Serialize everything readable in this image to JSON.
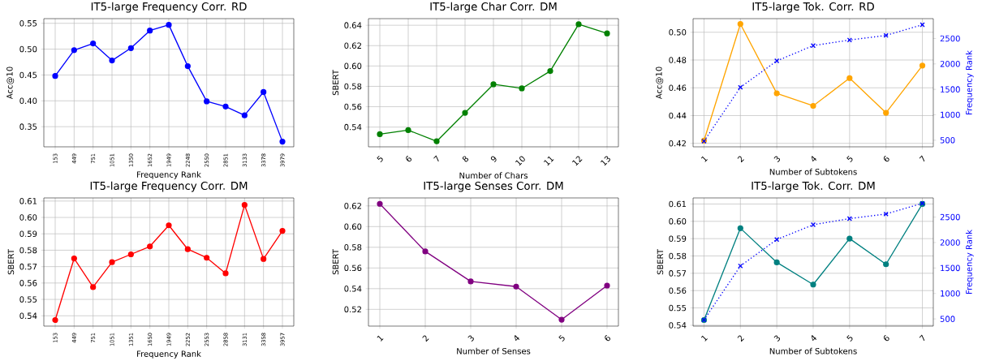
{
  "chart_data": [
    {
      "type": "line",
      "title": "IT5-large Frequency Corr. RD",
      "xlabel": "Frequency Rank",
      "ylabel": "Acc@10",
      "categories": [
        "153",
        "449",
        "751",
        "1051",
        "1350",
        "1652",
        "1949",
        "2248",
        "2550",
        "2851",
        "3133",
        "3378",
        "3979"
      ],
      "series": [
        {
          "color": "#0000ff",
          "marker": "circle",
          "line_style": "solid",
          "values": [
            0.448,
            0.498,
            0.511,
            0.478,
            0.502,
            0.536,
            0.547,
            0.467,
            0.399,
            0.389,
            0.372,
            0.417,
            0.321
          ]
        }
      ],
      "ylim": [
        0.311,
        0.559
      ],
      "yticks": [
        0.35,
        {
          "value": 0.4,
          "label": "0.40"
        },
        0.45,
        {
          "value": 0.5,
          "label": "0.50"
        },
        0.55
      ],
      "grid": true
    },
    {
      "type": "line",
      "title": "IT5-large Char Corr. DM",
      "xlabel": "Number of Chars",
      "ylabel": "SBERT",
      "categories": [
        "5",
        "6",
        "7",
        "8",
        "9",
        "10",
        "11",
        "12",
        "13"
      ],
      "series": [
        {
          "color": "#008000",
          "marker": "circle",
          "line_style": "solid",
          "values": [
            0.533,
            0.537,
            0.526,
            0.554,
            0.582,
            0.578,
            0.595,
            0.641,
            0.632
          ]
        }
      ],
      "ylim": [
        0.5206,
        0.6465
      ],
      "yticks": [
        0.54,
        0.56,
        0.58,
        {
          "value": 0.6,
          "label": "0.60"
        },
        0.62,
        0.64
      ],
      "grid": true
    },
    {
      "type": "line",
      "title": "IT5-large Tok. Corr. RD",
      "xlabel": "Number of Subtokens",
      "ylabel": "Acc@10",
      "y2label": "Frequency Rank",
      "categories": [
        "1",
        "2",
        "3",
        "4",
        "5",
        "6",
        "7"
      ],
      "series": [
        {
          "color": "#ffa500",
          "marker": "circle",
          "line_style": "solid",
          "values": [
            0.422,
            0.506,
            0.456,
            0.447,
            0.467,
            0.442,
            0.476
          ]
        },
        {
          "color": "#0000ff",
          "marker": "cross",
          "line_style": "dotted",
          "axis": "y2",
          "values": [
            480,
            1540,
            2060,
            2360,
            2470,
            2560,
            2770
          ]
        }
      ],
      "ylim": [
        0.4175,
        0.5098
      ],
      "yticks": [
        0.42,
        0.44,
        0.46,
        0.48,
        {
          "value": 0.5,
          "label": "0.50"
        }
      ],
      "y2lim": [
        370,
        2890
      ],
      "y2ticks": [
        500,
        1000,
        1500,
        2000,
        2500
      ],
      "grid": true
    },
    {
      "type": "line",
      "title": "IT5-large Frequency Corr. DM",
      "xlabel": "Frequency Rank",
      "ylabel": "SBERT",
      "categories": [
        "153",
        "449",
        "751",
        "1051",
        "1351",
        "1650",
        "1949",
        "2252",
        "2553",
        "2858",
        "3131",
        "3358",
        "3957"
      ],
      "series": [
        {
          "color": "#ff0000",
          "marker": "circle",
          "line_style": "solid",
          "values": [
            0.5374,
            0.575,
            0.5575,
            0.5727,
            0.5775,
            0.5823,
            0.5952,
            0.5806,
            0.5754,
            0.5659,
            0.6076,
            0.5747,
            0.5918
          ]
        }
      ],
      "ylim": [
        0.5337,
        0.6119
      ],
      "yticks": [
        0.54,
        0.55,
        0.56,
        0.57,
        0.58,
        0.59,
        {
          "value": 0.6,
          "label": "0.60"
        },
        0.61
      ],
      "grid": true
    },
    {
      "type": "line",
      "title": "IT5-large Senses Corr. DM",
      "xlabel": "Number of Senses",
      "ylabel": "SBERT",
      "categories": [
        "1",
        "2",
        "3",
        "4",
        "5",
        "6"
      ],
      "series": [
        {
          "color": "#800080",
          "marker": "circle",
          "line_style": "solid",
          "values": [
            0.622,
            0.576,
            0.547,
            0.542,
            0.51,
            0.543
          ]
        }
      ],
      "ylim": [
        0.5038,
        0.6277
      ],
      "yticks": [
        0.52,
        0.54,
        0.56,
        0.58,
        {
          "value": 0.6,
          "label": "0.60"
        },
        0.62
      ],
      "grid": true
    },
    {
      "type": "line",
      "title": "IT5-large Tok. Corr. DM",
      "xlabel": "Number of Subtokens",
      "ylabel": "SBERT",
      "y2label": "Frequency Rank",
      "categories": [
        "1",
        "2",
        "3",
        "4",
        "5",
        "6",
        "7"
      ],
      "series": [
        {
          "color": "#008080",
          "marker": "circle",
          "line_style": "solid",
          "values": [
            0.543,
            0.596,
            0.5763,
            0.5635,
            0.59,
            0.5752,
            0.61
          ]
        },
        {
          "color": "#0000ff",
          "marker": "cross",
          "line_style": "dotted",
          "axis": "y2",
          "values": [
            480,
            1540,
            2060,
            2350,
            2470,
            2560,
            2770
          ]
        }
      ],
      "ylim": [
        0.5395,
        0.6135
      ],
      "yticks": [
        0.54,
        0.55,
        0.56,
        0.57,
        0.58,
        0.59,
        {
          "value": 0.6,
          "label": "0.60"
        },
        0.61
      ],
      "y2lim": [
        359,
        2876
      ],
      "y2ticks": [
        500,
        1000,
        1500,
        2000,
        2500
      ],
      "grid": true
    }
  ]
}
